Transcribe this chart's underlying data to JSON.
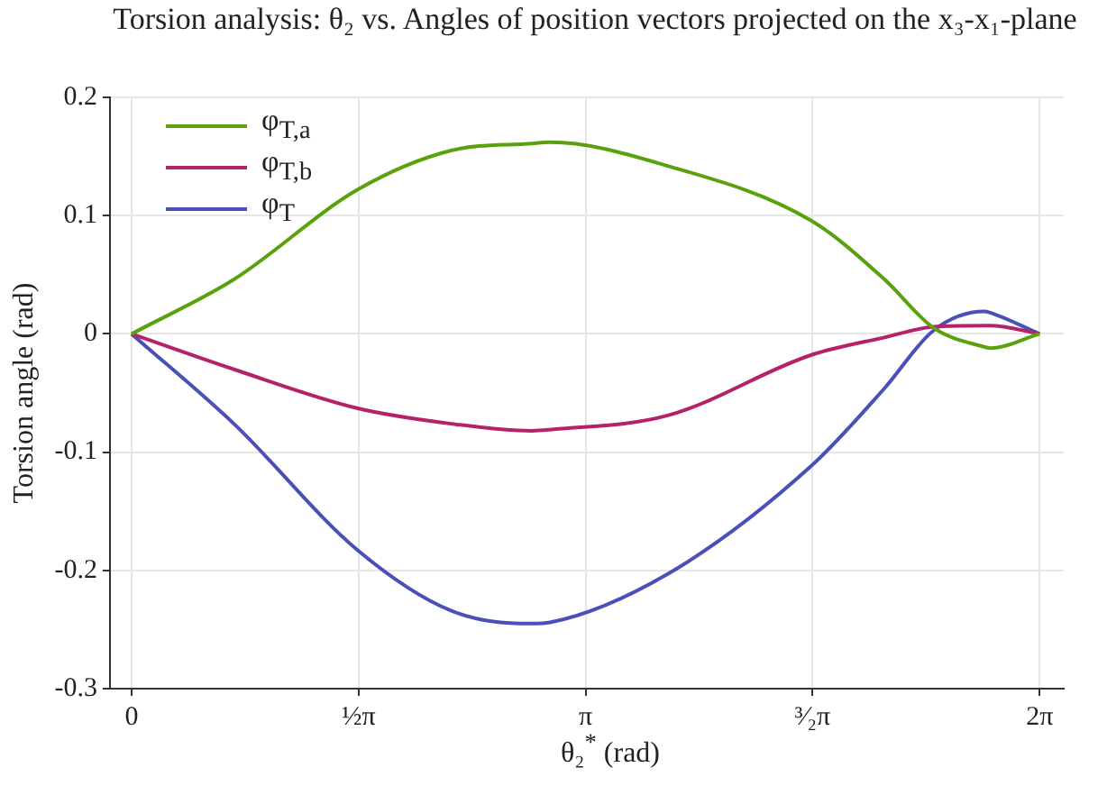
{
  "chart_data": {
    "type": "line",
    "title": "Torsion analysis: θ₂ vs. Angles of position vectors projected on the x₃-x₁-plane",
    "xlabel": "θ₂$^{*}$ (rad)",
    "ylabel": "Torsion angle (rad)",
    "x": [
      0,
      0.708,
      1.565,
      2.21,
      2.77,
      2.895,
      3.71,
      4.7,
      5.21,
      5.55,
      5.9,
      5.94,
      6.283
    ],
    "series": [
      {
        "name": "φ$_{T,a}$",
        "color": "#5aa10e",
        "values": [
          0,
          0.046,
          0.122,
          0.155,
          0.161,
          0.162,
          0.142,
          0.096,
          0.046,
          0.005,
          -0.011,
          -0.012,
          0
        ]
      },
      {
        "name": "φ$_{T,b}$",
        "color": "#b5226a",
        "values": [
          0,
          -0.03,
          -0.063,
          -0.076,
          -0.082,
          -0.081,
          -0.069,
          -0.018,
          -0.003,
          0.006,
          0.007,
          0.007,
          0
        ]
      },
      {
        "name": "φ$_{T}$",
        "color": "#4b4fb8",
        "values": [
          0,
          -0.076,
          -0.183,
          -0.234,
          -0.245,
          -0.244,
          -0.203,
          -0.112,
          -0.046,
          0.003,
          0.019,
          0.018,
          0
        ]
      }
    ],
    "xlim": [
      -0.15,
      6.45
    ],
    "ylim": [
      -0.3,
      0.2
    ],
    "xticks": [
      0,
      {
        "value": 1.5708,
        "label": "½π"
      },
      {
        "value": 3.1416,
        "label": "π"
      },
      {
        "value": 4.7124,
        "label": "³⁄₂π"
      },
      {
        "value": 6.2832,
        "label": "2π"
      }
    ],
    "yticks": [
      -0.3,
      -0.2,
      -0.1,
      0,
      0.1,
      0.2
    ],
    "grid": true,
    "legend": "top left",
    "marker": "none",
    "line_style": "solid"
  }
}
